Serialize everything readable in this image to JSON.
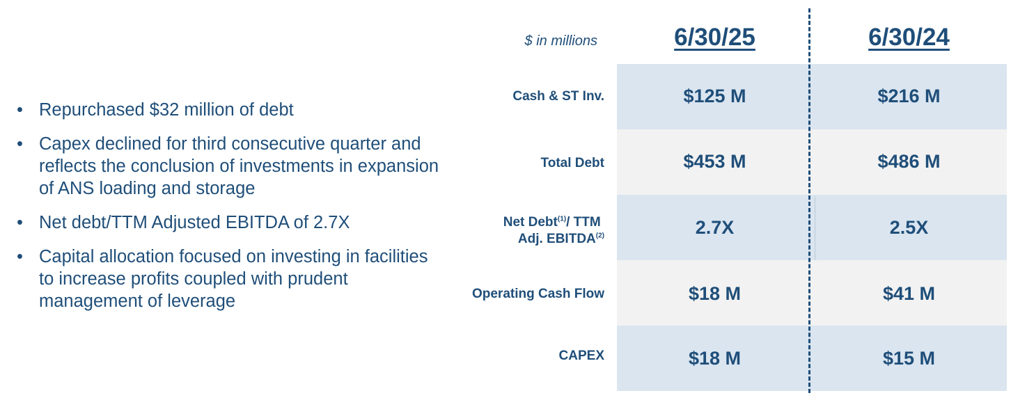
{
  "bullets": [
    "Repurchased $32 million of debt",
    "Capex declined for third consecutive quarter and reflects the conclusion of investments in expansion of ANS loading and storage",
    "Net debt/TTM Adjusted EBITDA of 2.7X",
    "Capital allocation focused on investing in facilities to increase profits coupled with prudent management of leverage"
  ],
  "table": {
    "units_label": "$ in millions",
    "columns": [
      "6/30/25",
      "6/30/24"
    ],
    "rows": [
      {
        "label": "Cash & ST Inv.",
        "values": [
          "$125 M",
          "$216 M"
        ]
      },
      {
        "label": "Total Debt",
        "values": [
          "$453 M",
          "$486 M"
        ]
      },
      {
        "label_line1": "Net Debt",
        "label_sup1": "(1)",
        "label_line1b": "/ TTM",
        "label_line2": "Adj. EBITDA",
        "label_sup2": "(2)",
        "values": [
          "2.7X",
          "2.5X"
        ]
      },
      {
        "label": "Operating Cash Flow",
        "values": [
          "$18 M",
          "$41 M"
        ]
      },
      {
        "label": "CAPEX",
        "values": [
          "$18 M",
          "$15 M"
        ]
      }
    ]
  },
  "colors": {
    "text": "#1f4e79",
    "row_blue": "#dae5f0",
    "row_grey": "#f2f2f2"
  }
}
